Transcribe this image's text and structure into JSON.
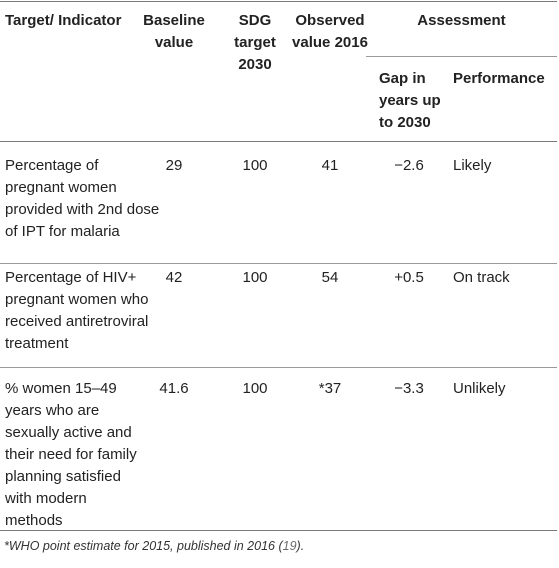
{
  "table": {
    "headers": {
      "indicator": "Target/ Indicator",
      "baseline": "Baseline value",
      "sdg_target": "SDG target 2030",
      "observed": "Observed value 2016",
      "assessment": "Assessment",
      "gap": "Gap in years up to 2030",
      "performance": "Performance"
    },
    "rows": [
      {
        "indicator": "Percentage of pregnant women provided with 2nd dose of IPT for malaria",
        "baseline": "29",
        "sdg_target": "100",
        "observed": "41",
        "gap": "−2.6",
        "performance": "Likely"
      },
      {
        "indicator": "Percentage of HIV+ pregnant women who received antiretroviral treatment",
        "baseline": "42",
        "sdg_target": "100",
        "observed": "54",
        "gap": "+0.5",
        "performance": "On track"
      },
      {
        "indicator": "% women 15–49 years who are sexually active and their need for family planning satisfied with modern methods",
        "baseline": "41.6",
        "sdg_target": "100",
        "observed": "*37",
        "gap": "−3.3",
        "performance": "Unlikely"
      }
    ],
    "footnote": {
      "text": "*WHO point estimate for 2015, published in 2016 (",
      "ref": "19",
      "close": ")."
    }
  }
}
